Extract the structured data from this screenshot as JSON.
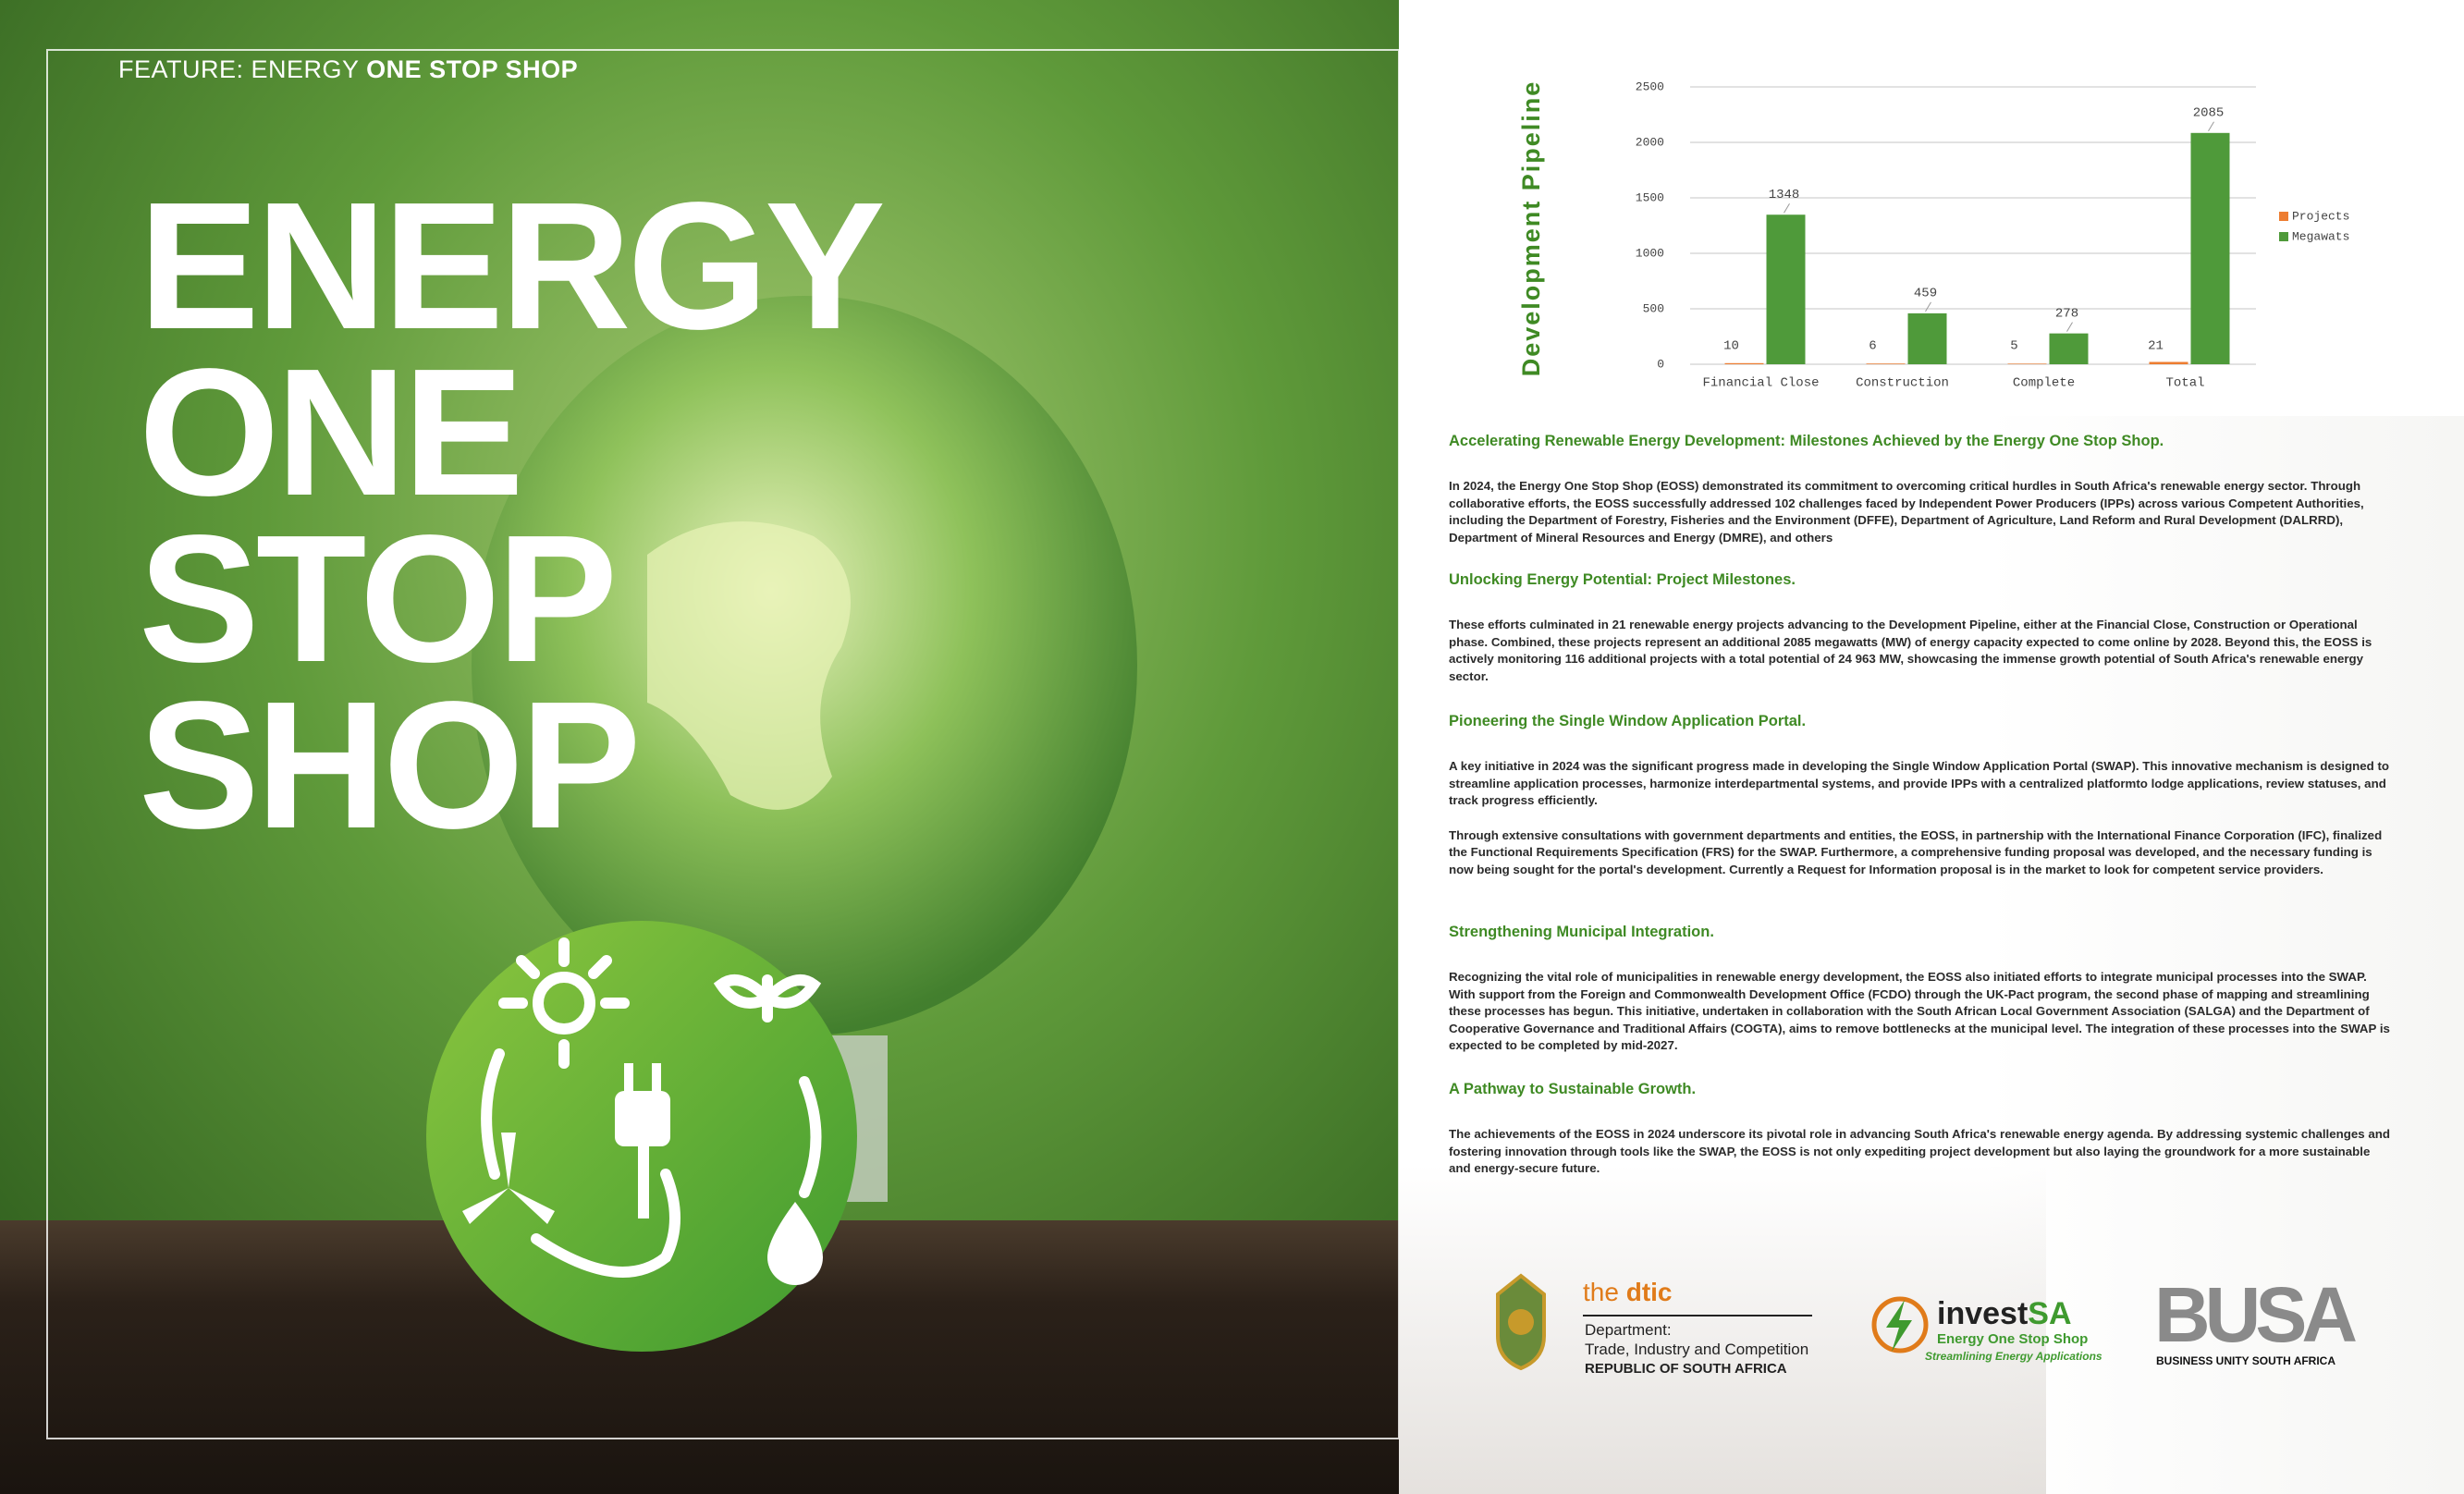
{
  "feature": {
    "prefix": "FEATURE: ENERGY",
    "emphasis": "ONE STOP SHOP"
  },
  "title": [
    "ENERGY",
    "ONE",
    "STOP",
    "SHOP"
  ],
  "chart_data": {
    "type": "bar",
    "ylabel": "Development Pipeline",
    "categories": [
      "Financial Close",
      "Construction",
      "Complete",
      "Total"
    ],
    "series": [
      {
        "name": "Projects",
        "color": "#ed7d31",
        "values": [
          10,
          6,
          5,
          21
        ]
      },
      {
        "name": "Megawats",
        "color": "#4f9a3a",
        "values": [
          1348,
          459,
          278,
          2085
        ]
      }
    ],
    "ylim": [
      0,
      2500
    ],
    "yticks": [
      0,
      500,
      1000,
      1500,
      2000,
      2500
    ],
    "grid": true,
    "legend": "right"
  },
  "sections": [
    {
      "heading": "Accelerating Renewable Energy Development: Milestones Achieved by the Energy One Stop Shop.",
      "paragraphs": [
        "In 2024, the Energy One Stop Shop (EOSS) demonstrated its commitment to overcoming critical hurdles in South Africa's renewable energy sector. Through collaborative efforts, the EOSS successfully addressed 102 challenges faced by Independent Power Producers (IPPs) across various Competent Authorities, including the Department of Forestry, Fisheries and the Environment (DFFE), Department of Agriculture, Land Reform and Rural Development (DALRRD), Department of Mineral Resources and Energy (DMRE), and others"
      ]
    },
    {
      "heading": "Unlocking Energy Potential: Project Milestones.",
      "paragraphs": [
        "These efforts culminated in 21 renewable energy projects advancing to the Development Pipeline, either at the Financial Close, Construction or Operational phase. Combined, these projects represent an additional 2085 megawatts (MW) of energy capacity expected to come online by 2028. Beyond this, the EOSS is actively monitoring 116 additional projects with a total potential of 24 963 MW, showcasing the immense growth potential of South Africa's renewable energy sector."
      ]
    },
    {
      "heading": "Pioneering the Single Window Application Portal.",
      "paragraphs": [
        "A key initiative in 2024 was the significant progress made in developing the Single Window Application Portal (SWAP). This innovative mechanism is designed to streamline application processes, harmonize interdepartmental systems, and provide IPPs with a centralized platformto lodge applications, review statuses, and track progress efficiently.",
        "Through extensive consultations with government departments and entities, the EOSS, in partnership with the International Finance Corporation (IFC), finalized the Functional Requirements Specification (FRS) for the SWAP. Furthermore, a comprehensive funding proposal was developed, and the necessary funding is now being sought for the portal's development. Currently a Request for Information proposal is in the market to look for competent service providers."
      ]
    },
    {
      "heading": "Strengthening Municipal Integration.",
      "paragraphs": [
        "Recognizing the vital role of municipalities in renewable energy development, the EOSS also initiated efforts to integrate municipal processes into the SWAP. With support from the Foreign and Commonwealth Development Office (FCDO) through the UK-Pact program, the second phase of mapping and streamlining these processes has begun. This initiative, undertaken in collaboration with the South African Local Government Association (SALGA) and the Department of Cooperative Governance and Traditional Affairs (COGTA), aims to remove bottlenecks at the municipal level. The integration of these processes into the SWAP is expected to be completed by mid-2027."
      ]
    },
    {
      "heading": "A Pathway to Sustainable Growth.",
      "paragraphs": [
        "The achievements of the EOSS in 2024 underscore its pivotal role in advancing South Africa's renewable energy agenda. By addressing systemic challenges and fostering innovation through tools like the SWAP, the EOSS is not only expediting project development but also laying the groundwork for a more sustainable and energy-secure future."
      ]
    }
  ],
  "logos": {
    "dtic": {
      "prefix": "the",
      "name": "dtic",
      "lines": [
        "Department:",
        "Trade, Industry and Competition",
        "REPUBLIC OF SOUTH AFRICA"
      ]
    },
    "investsa": {
      "prefix": "invest",
      "name": "SA",
      "subtitle": "Energy One Stop Shop",
      "tagline": "Streamlining Energy Applications"
    },
    "busa": {
      "name": "BUSA",
      "tagline": "BUSINESS UNITY SOUTH AFRICA"
    }
  }
}
